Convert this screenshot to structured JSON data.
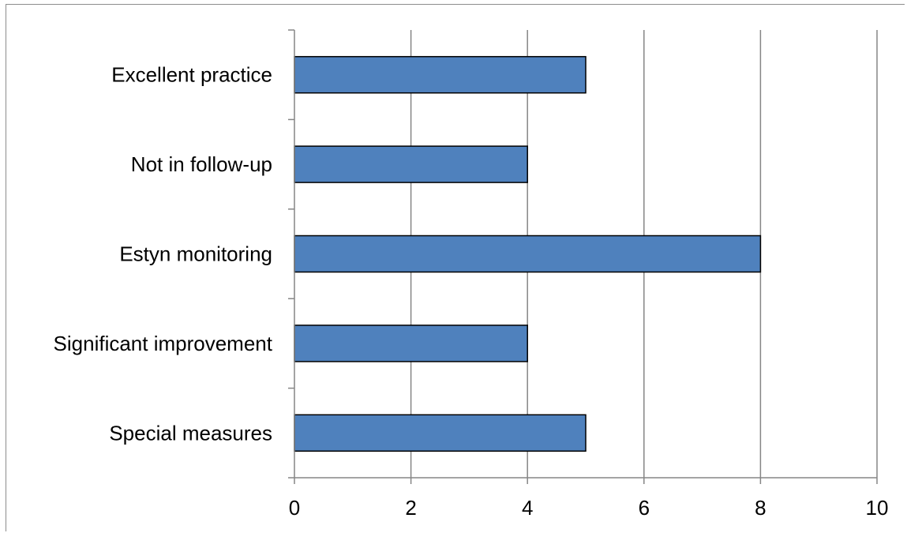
{
  "chart_data": {
    "type": "bar",
    "orientation": "horizontal",
    "categories": [
      "Excellent practice",
      "Not in follow-up",
      "Estyn monitoring",
      "Significant improvement",
      "Special measures"
    ],
    "values": [
      5,
      4,
      8,
      4,
      5
    ],
    "title": "",
    "xlabel": "",
    "ylabel": "",
    "xlim": [
      0,
      10
    ],
    "x_ticks": [
      0,
      2,
      4,
      6,
      8,
      10
    ],
    "grid": "vertical",
    "legend": "none",
    "bar_color": "#4f81bd",
    "bar_edge_color": "#000000",
    "grid_color": "#868686"
  }
}
